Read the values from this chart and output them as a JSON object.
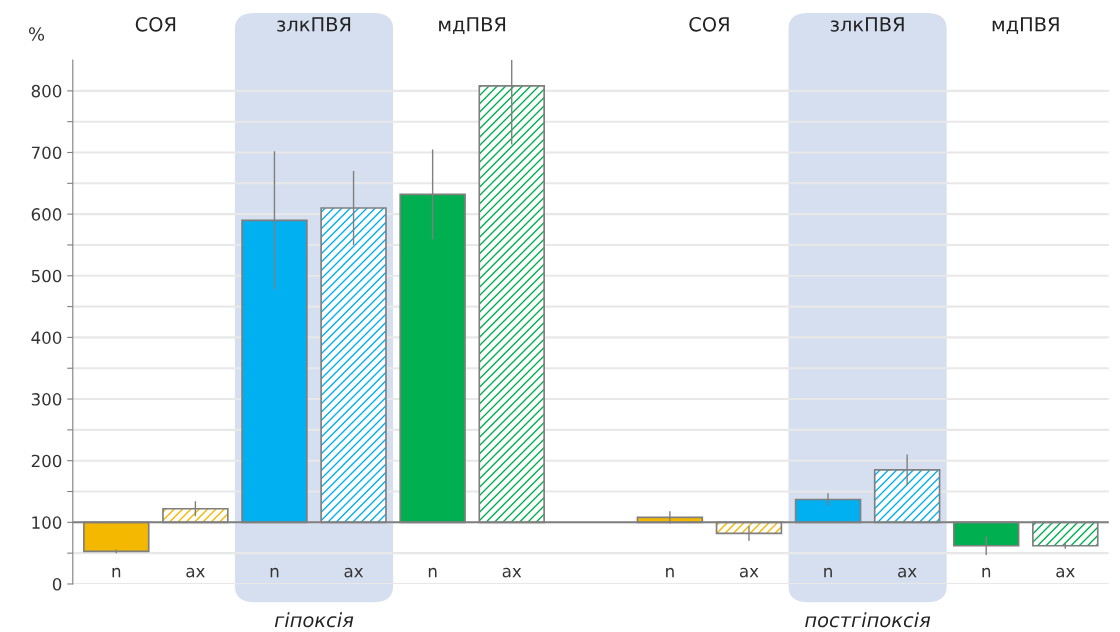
{
  "chart_data": {
    "type": "bar",
    "categories": [
      "n",
      "ax",
      "n",
      "ax",
      "n",
      "ax",
      null,
      "n",
      "ax",
      "n",
      "ax",
      "n",
      "ax"
    ],
    "series": [
      {
        "colors": [
          "#f5b800",
          null,
          "#00b0f0",
          null,
          "#00b050",
          null,
          null,
          "#f5b800",
          null,
          "#00b0f0",
          null,
          "#00b050",
          null
        ],
        "values": [
          -47,
          null,
          490,
          null,
          532,
          null,
          null,
          8,
          null,
          37,
          null,
          -38,
          null
        ],
        "base": [
          100,
          null,
          100,
          null,
          100,
          null,
          null,
          100,
          null,
          100,
          null,
          100,
          null
        ],
        "errors": [
          3,
          null,
          112,
          null,
          73,
          null,
          null,
          10,
          null,
          10,
          null,
          15,
          null
        ]
      },
      {
        "colors": [
          null,
          "#f5b800",
          null,
          "#00b0f0",
          null,
          "#00b050",
          null,
          null,
          "#f5b800",
          null,
          "#00b0f0",
          null,
          "#00b050"
        ],
        "values": [
          null,
          22,
          null,
          510,
          null,
          708,
          null,
          null,
          -18,
          null,
          85,
          null,
          -38
        ],
        "base": [
          null,
          100,
          null,
          100,
          null,
          100,
          null,
          null,
          100,
          null,
          100,
          null,
          100
        ],
        "errors": [
          null,
          12,
          null,
          60,
          null,
          95,
          null,
          null,
          12,
          null,
          25,
          null,
          5
        ]
      }
    ],
    "ylabel": "%",
    "ylim": [
      0,
      850
    ],
    "yticks": [
      0,
      {
        "value": 50,
        "label": null
      },
      100,
      {
        "value": 150,
        "label": null
      },
      200,
      {
        "value": 250,
        "label": null
      },
      300,
      {
        "value": 350,
        "label": null
      },
      400,
      {
        "value": 450,
        "label": null
      },
      500,
      {
        "value": 550,
        "label": null
      },
      600,
      {
        "value": 650,
        "label": null
      },
      700,
      {
        "value": 750,
        "label": null
      },
      800
    ],
    "grid": "y",
    "ref_lines": [
      {
        "axis": "y",
        "value": 100,
        "color": "#7f7f7f"
      }
    ],
    "annotations": [
      "СОЯ",
      "злкПВЯ",
      "мдПВЯ",
      "СОЯ",
      "злкПВЯ",
      "мдПВЯ",
      "гіпоксія",
      "постгіпоксія"
    ]
  }
}
